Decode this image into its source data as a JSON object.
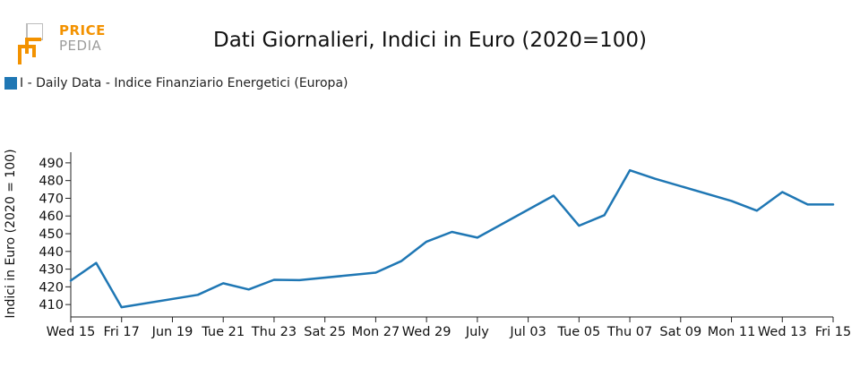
{
  "logo": {
    "top": "PRICE",
    "bottom": "PEDIA"
  },
  "colors": {
    "series": "#1f77b4",
    "logo_orange": "#f39200",
    "logo_gray": "#9d9d9c"
  },
  "chart_data": {
    "type": "line",
    "title": "Dati Giornalieri, Indici in Euro (2020=100)",
    "ylabel": "Indici in Euro (2020 = 100)",
    "xlabel": "",
    "ylim": [
      403,
      495
    ],
    "yticks": [
      410,
      420,
      430,
      440,
      450,
      460,
      470,
      480,
      490
    ],
    "x_ticks": [
      {
        "date": "2025-10-15",
        "label": "Wed 15"
      },
      {
        "date": "2025-10-17",
        "label": "Fri 17"
      },
      {
        "date": "2025-10-19",
        "label": "Jun 19"
      },
      {
        "date": "2025-10-21",
        "label": "Tue 21"
      },
      {
        "date": "2025-10-23",
        "label": "Thu 23"
      },
      {
        "date": "2025-10-25",
        "label": "Sat 25"
      },
      {
        "date": "2025-10-27",
        "label": "Mon 27"
      },
      {
        "date": "2025-10-29",
        "label": "Wed 29"
      },
      {
        "date": "2025-10-31",
        "label": "July"
      },
      {
        "date": "2025-11-02",
        "label": "Jul 03"
      },
      {
        "date": "2025-11-04",
        "label": "Tue 05"
      },
      {
        "date": "2025-11-06",
        "label": "Thu 07"
      },
      {
        "date": "2025-11-08",
        "label": "Sat 09"
      },
      {
        "date": "2025-11-10",
        "label": "Mon 11"
      },
      {
        "date": "2025-11-12",
        "label": "Wed 13"
      },
      {
        "date": "2025-11-14",
        "label": "Fri 15"
      }
    ],
    "xlim": [
      "2025-10-15",
      "2025-11-14"
    ],
    "grid": false,
    "legend_position": "top-left",
    "series": [
      {
        "name": "I - Daily Data - Indice Finanziario Energetici (Europa)",
        "x": [
          "2025-10-15",
          "2025-10-16",
          "2025-10-17",
          "2025-10-20",
          "2025-10-21",
          "2025-10-22",
          "2025-10-23",
          "2025-10-24",
          "2025-10-27",
          "2025-10-28",
          "2025-10-29",
          "2025-10-30",
          "2025-10-31",
          "2025-11-03",
          "2025-11-04",
          "2025-11-05",
          "2025-11-06",
          "2025-11-07",
          "2025-11-10",
          "2025-11-11",
          "2025-11-12",
          "2025-11-13",
          "2025-11-14"
        ],
        "y": [
          423.5,
          433.5,
          408.5,
          415.5,
          422.0,
          418.5,
          424.0,
          423.8,
          428.0,
          434.5,
          445.5,
          451.0,
          447.8,
          471.5,
          454.5,
          460.5,
          485.8,
          481.0,
          468.5,
          463.0,
          473.5,
          466.5,
          466.5
        ]
      }
    ]
  }
}
